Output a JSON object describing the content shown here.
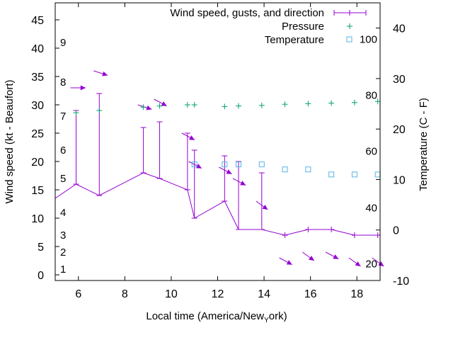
{
  "chart_data": {
    "type": "line",
    "title": "",
    "xlabel": "Local time (America/New_York)",
    "xlabel_display": "Local time (America/New",
    "xlabel_subscript": "Y",
    "xlabel_tail": "ork)",
    "ylabel": "Wind speed (kt - Beaufort)",
    "y2label": "Temperature (C - F)",
    "xlim": [
      5,
      19
    ],
    "ylim": [
      -1,
      48
    ],
    "y2lim": [
      -10,
      45
    ],
    "grid": false,
    "legend_position": "top-right",
    "x_ticks": [
      6,
      8,
      10,
      12,
      14,
      16,
      18
    ],
    "y_ticks": [
      0,
      5,
      10,
      15,
      20,
      25,
      30,
      35,
      40,
      45
    ],
    "y2_ticks": [
      -10,
      0,
      10,
      20,
      30,
      40
    ],
    "beaufort_labels": [
      {
        "label": "1",
        "kt": 1
      },
      {
        "label": "2",
        "kt": 4
      },
      {
        "label": "3",
        "kt": 7
      },
      {
        "label": "4",
        "kt": 11
      },
      {
        "label": "5",
        "kt": 17
      },
      {
        "label": "6",
        "kt": 22
      },
      {
        "label": "7",
        "kt": 28
      },
      {
        "label": "8",
        "kt": 34
      },
      {
        "label": "9",
        "kt": 41
      }
    ],
    "fahrenheit_labels": [
      {
        "label": "20",
        "c": -6.7
      },
      {
        "label": "40",
        "c": 4.4
      },
      {
        "label": "60",
        "c": 15.6
      },
      {
        "label": "80",
        "c": 26.7
      },
      {
        "label": "100",
        "c": 37.8
      }
    ],
    "series": [
      {
        "name": "Wind speed, gusts, and direction",
        "color": "#9400d3",
        "points": [
          {
            "x": 5.0,
            "speed": 13.5,
            "gust": null
          },
          {
            "x": 5.9,
            "speed": 16,
            "gust": 29
          },
          {
            "x": 6.9,
            "speed": 14,
            "gust": 32
          },
          {
            "x": 8.8,
            "speed": 18,
            "gust": 26
          },
          {
            "x": 9.5,
            "speed": 17,
            "gust": 27
          },
          {
            "x": 10.7,
            "speed": 15,
            "gust": 25
          },
          {
            "x": 11.0,
            "speed": 10,
            "gust": 22
          },
          {
            "x": 12.3,
            "speed": 13,
            "gust": 21
          },
          {
            "x": 12.9,
            "speed": 8,
            "gust": 20
          },
          {
            "x": 13.9,
            "speed": 8,
            "gust": 18
          },
          {
            "x": 14.9,
            "speed": 7,
            "gust": null
          },
          {
            "x": 15.9,
            "speed": 8,
            "gust": null
          },
          {
            "x": 16.9,
            "speed": 8,
            "gust": null
          },
          {
            "x": 17.9,
            "speed": 7,
            "gust": null
          },
          {
            "x": 18.9,
            "speed": 7,
            "gust": null
          }
        ],
        "direction_arrows": [
          {
            "x": 5.9,
            "y": 33,
            "dx": 0.35,
            "dy": 0
          },
          {
            "x": 6.9,
            "y": 36,
            "dx": 0.3,
            "dy": -0.8
          },
          {
            "x": 8.8,
            "y": 30,
            "dx": 0.3,
            "dy": -0.8
          },
          {
            "x": 9.5,
            "y": 31,
            "dx": 0.25,
            "dy": -1.2
          },
          {
            "x": 10.7,
            "y": 25,
            "dx": 0.25,
            "dy": -1.2
          },
          {
            "x": 11.0,
            "y": 20,
            "dx": 0.25,
            "dy": -1.2
          },
          {
            "x": 12.3,
            "y": 19,
            "dx": 0.25,
            "dy": -1.2
          },
          {
            "x": 12.9,
            "y": 17,
            "dx": 0.25,
            "dy": -1.2
          },
          {
            "x": 13.9,
            "y": 13,
            "dx": 0.2,
            "dy": -1.5
          },
          {
            "x": 14.9,
            "y": 3,
            "dx": 0.25,
            "dy": -1.2
          },
          {
            "x": 15.9,
            "y": 4,
            "dx": 0.2,
            "dy": -1.5
          },
          {
            "x": 16.9,
            "y": 4,
            "dx": 0.25,
            "dy": -1.2
          },
          {
            "x": 17.9,
            "y": 3,
            "dx": 0.2,
            "dy": -1.5
          },
          {
            "x": 18.9,
            "y": 3,
            "dx": 0.2,
            "dy": -1.5
          }
        ]
      },
      {
        "name": "Pressure",
        "color": "#009e73",
        "marker": "plus",
        "axis": "left",
        "points": [
          {
            "x": 5.9,
            "y": 28.6
          },
          {
            "x": 6.9,
            "y": 29
          },
          {
            "x": 8.8,
            "y": 29.6
          },
          {
            "x": 9.5,
            "y": 29.8
          },
          {
            "x": 10.7,
            "y": 30
          },
          {
            "x": 11.0,
            "y": 30
          },
          {
            "x": 12.3,
            "y": 29.7
          },
          {
            "x": 12.9,
            "y": 29.8
          },
          {
            "x": 13.9,
            "y": 29.9
          },
          {
            "x": 14.9,
            "y": 30.1
          },
          {
            "x": 15.9,
            "y": 30.2
          },
          {
            "x": 16.9,
            "y": 30.3
          },
          {
            "x": 17.9,
            "y": 30.4
          },
          {
            "x": 18.9,
            "y": 30.6
          }
        ]
      },
      {
        "name": "Temperature",
        "color": "#56b4e9",
        "marker": "square",
        "axis": "right",
        "points": [
          {
            "x": 11.0,
            "y": 13
          },
          {
            "x": 12.3,
            "y": 13
          },
          {
            "x": 12.9,
            "y": 13
          },
          {
            "x": 13.9,
            "y": 13
          },
          {
            "x": 14.9,
            "y": 12
          },
          {
            "x": 15.9,
            "y": 12
          },
          {
            "x": 16.9,
            "y": 11
          },
          {
            "x": 17.9,
            "y": 11
          },
          {
            "x": 18.9,
            "y": 11
          }
        ]
      }
    ]
  }
}
